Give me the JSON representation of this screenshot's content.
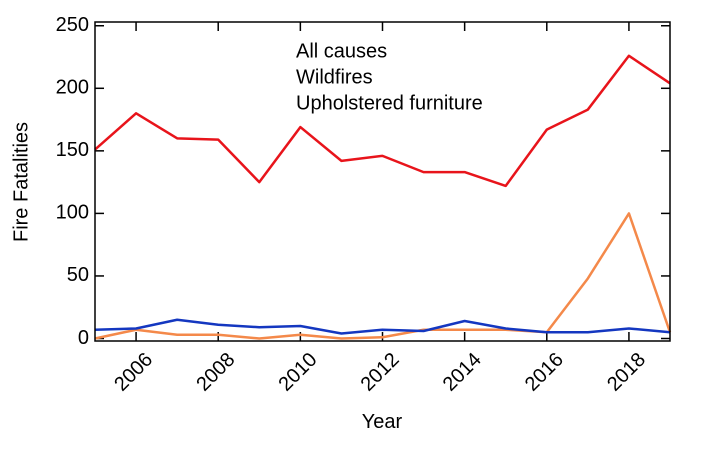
{
  "chart_data": {
    "type": "line",
    "x_label": "Year",
    "y_label": "Fire Fatalities",
    "x": [
      2005,
      2006,
      2007,
      2008,
      2009,
      2010,
      2011,
      2012,
      2013,
      2014,
      2015,
      2016,
      2017,
      2018,
      2019
    ],
    "series": [
      {
        "name": "All causes",
        "color": "#e8141b",
        "values": [
          151,
          180,
          160,
          159,
          125,
          169,
          142,
          146,
          133,
          133,
          122,
          167,
          183,
          226,
          204
        ]
      },
      {
        "name": "Wildfires",
        "color": "#f4894a",
        "values": [
          0,
          7,
          3,
          3,
          0,
          3,
          0,
          1,
          7,
          7,
          7,
          5,
          48,
          100,
          5
        ]
      },
      {
        "name": "Upholstered furniture",
        "color": "#1437c0",
        "values": [
          7,
          8,
          15,
          11,
          9,
          10,
          4,
          7,
          6,
          14,
          8,
          5,
          5,
          8,
          5
        ]
      }
    ],
    "xlim": [
      2005,
      2019
    ],
    "xticks": [
      2006,
      2008,
      2010,
      2012,
      2014,
      2016,
      2018
    ],
    "ylim": [
      -2,
      253
    ],
    "yticks": [
      0,
      50,
      100,
      150,
      200,
      250
    ],
    "grid": false,
    "legend": "upper center"
  }
}
